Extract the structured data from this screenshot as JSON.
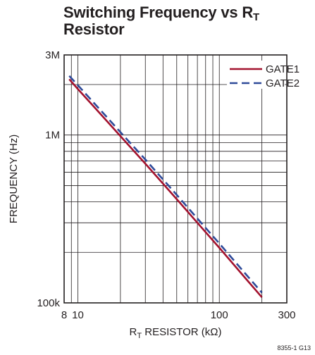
{
  "title_main": "Switching Frequency vs R",
  "title_sub": "T",
  "title_line2": "Resistor",
  "figure_code": "8355-1 G13",
  "chart_data": {
    "type": "line",
    "x_scale": "log",
    "y_scale": "log",
    "xlim": [
      8,
      300
    ],
    "ylim": [
      100000,
      3000000
    ],
    "xlabel_main": "R",
    "xlabel_sub": "T",
    "xlabel_rest": " RESISTOR (kΩ)",
    "ylabel": "FREQUENCY (Hz)",
    "x_tick_labels": [
      {
        "value": 8,
        "label": "8"
      },
      {
        "value": 10,
        "label": "10"
      },
      {
        "value": 100,
        "label": "100"
      },
      {
        "value": 300,
        "label": "300"
      }
    ],
    "y_tick_labels": [
      {
        "value": 100000,
        "label": "100k"
      },
      {
        "value": 1000000,
        "label": "1M"
      },
      {
        "value": 3000000,
        "label": "3M"
      }
    ],
    "x_gridlines": [
      8,
      9,
      10,
      20,
      30,
      40,
      50,
      60,
      70,
      80,
      90,
      100,
      200,
      300
    ],
    "y_gridlines": [
      100000,
      200000,
      300000,
      400000,
      500000,
      600000,
      700000,
      800000,
      900000,
      1000000,
      2000000,
      3000000
    ],
    "grid": true,
    "legend_position": "top-right",
    "series": [
      {
        "name": "GATE1",
        "color": "#a3122e",
        "dash": "solid",
        "x": [
          8.7,
          10,
          15,
          20,
          30,
          50,
          70,
          100,
          150,
          200
        ],
        "y": [
          2150000,
          1880000,
          1290000,
          985000,
          675000,
          415000,
          300000,
          213000,
          143000,
          108000
        ]
      },
      {
        "name": "GATE2",
        "color": "#2e4a99",
        "dash": "dashed",
        "x": [
          8.7,
          10,
          15,
          20,
          30,
          50,
          70,
          100,
          150,
          200
        ],
        "y": [
          2250000,
          1980000,
          1360000,
          1040000,
          715000,
          440000,
          318000,
          226000,
          152000,
          115000
        ]
      }
    ]
  }
}
